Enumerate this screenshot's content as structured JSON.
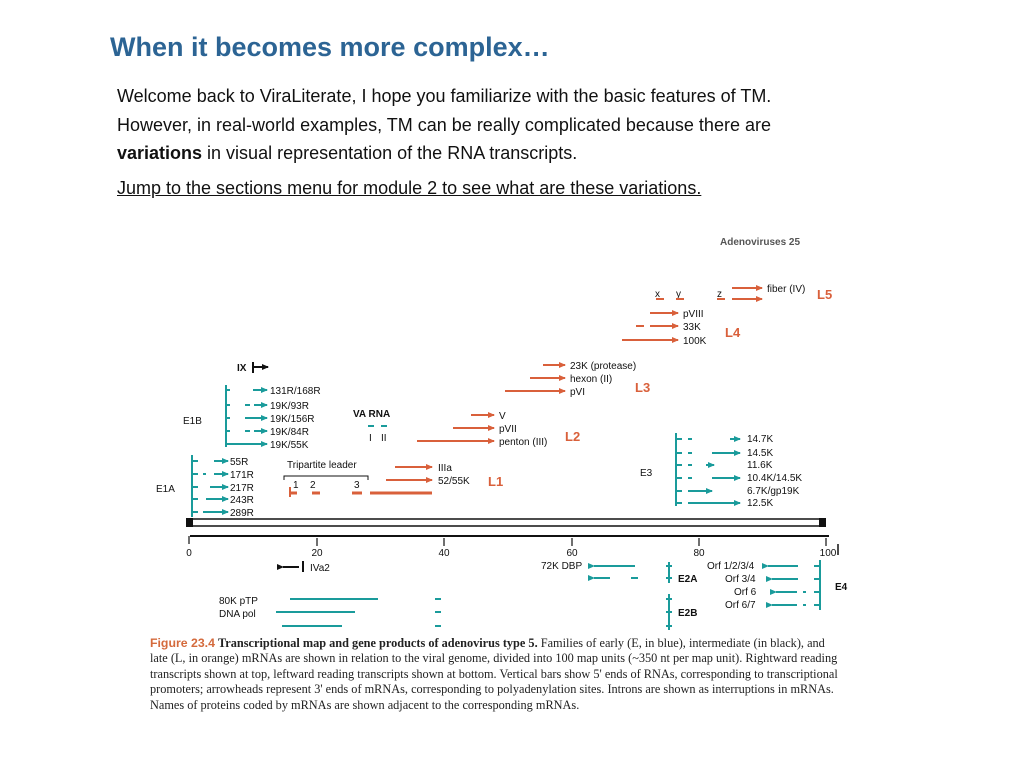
{
  "slide": {
    "title": "When it becomes more complex…",
    "intro_line1": "Welcome back to ViraLiterate, I hope you familiarize with the basic features of TM.",
    "intro_line2": "However, in real-world examples, TM can be really complicated because there are",
    "intro_bold": "variations",
    "intro_line3": " in visual representation of the RNA transcripts.",
    "jump_link": "Jump to the sections menu for module 2 to see what are these variations."
  },
  "figure": {
    "colors": {
      "early": "#1a9b9b",
      "late": "#d9603b",
      "intermediate": "#111111"
    },
    "axis_ticks": [
      "0",
      "20",
      "40",
      "60",
      "80",
      "100"
    ],
    "region_labels": {
      "E1A": "E1A",
      "E1B": "E1B",
      "E3": "E3",
      "E2A": "E2A",
      "E2B": "E2B",
      "E4": "E4",
      "L1": "L1",
      "L2": "L2",
      "L3": "L3",
      "L4": "L4",
      "L5": "L5"
    },
    "transcripts": {
      "e1a": [
        "55R",
        "171R",
        "217R",
        "243R",
        "289R"
      ],
      "e1b": [
        "131R/168R",
        "19K/93R",
        "19K/156R",
        "19K/84R",
        "19K/55K"
      ],
      "va_rna": "VA RNA",
      "va_1": "I",
      "va_2": "II",
      "ix": "IX",
      "tripartite": "Tripartite leader",
      "tri_1": "1",
      "tri_2": "2",
      "tri_3": "3",
      "l1": [
        "IIIa",
        "52/55K"
      ],
      "l2": [
        "V",
        "pVII",
        "penton (III)"
      ],
      "l3": [
        "23K (protease)",
        "hexon (II)",
        "pVI"
      ],
      "l4": [
        "pVIII",
        "33K",
        "100K"
      ],
      "l5": "fiber (IV)",
      "xyz": [
        "x",
        "y",
        "z"
      ],
      "e3": [
        "14.7K",
        "14.5K",
        "11.6K",
        "10.4K/14.5K",
        "6.7K/gp19K",
        "12.5K"
      ],
      "iva2": "IVa2",
      "dbp": "72K DBP",
      "e2b": [
        "80K pTP",
        "DNA pol"
      ],
      "e4": [
        "Orf 1/2/3/4",
        "Orf 3/4",
        "Orf 6",
        "Orf 6/7"
      ]
    },
    "cropped_header": "Adenoviruses 25"
  },
  "caption": {
    "figure_number": "Figure 23.4",
    "title": "Transcriptional map and gene products of adenovirus type 5.",
    "body": "Families of early (E, in blue), intermediate (in black), and late (L, in orange) mRNAs are shown in relation to the viral genome, divided into 100 map units (~350 nt per map unit). Rightward reading transcripts shown at top, leftward reading transcripts shown at bottom. Vertical bars show 5' ends of RNAs, corresponding to transcriptional promoters; arrowheads represent 3' ends of mRNAs, corresponding to polyadenylation sites. Introns are shown as interruptions in mRNAs. Names of proteins coded by mRNAs are shown adjacent to the corresponding mRNAs."
  }
}
